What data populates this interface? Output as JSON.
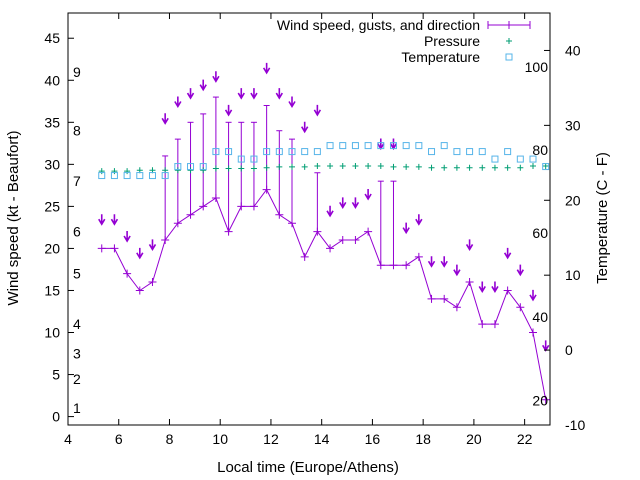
{
  "colors": {
    "wind": "#9400d3",
    "pressure": "#009e73",
    "temperature": "#56b4e9"
  },
  "chart_data": {
    "type": "line",
    "xlabel": "Local time (Europe/Athens)",
    "ylabel": "Wind speed (kt - Beaufort)",
    "y2label": "Temperature (C - F)",
    "xlim": [
      4,
      23
    ],
    "ylim": [
      -1,
      48
    ],
    "y2lim": [
      -10,
      45
    ],
    "xticks": [
      4,
      6,
      8,
      10,
      12,
      14,
      16,
      18,
      20,
      22
    ],
    "yticks": [
      0,
      5,
      10,
      15,
      20,
      25,
      30,
      35,
      40,
      45
    ],
    "y2ticks": [
      -10,
      0,
      10,
      20,
      30,
      40
    ],
    "beaufort_labels": [
      {
        "text": "1",
        "kt": 1
      },
      {
        "text": "2",
        "kt": 4.5
      },
      {
        "text": "3",
        "kt": 7.5
      },
      {
        "text": "4",
        "kt": 11
      },
      {
        "text": "5",
        "kt": 17
      },
      {
        "text": "6",
        "kt": 22
      },
      {
        "text": "7",
        "kt": 28
      },
      {
        "text": "8",
        "kt": 34
      },
      {
        "text": "9",
        "kt": 41
      }
    ],
    "fahrenheit_labels": [
      {
        "text": "20",
        "c": -6.7
      },
      {
        "text": "40",
        "c": 4.4
      },
      {
        "text": "60",
        "c": 15.6
      },
      {
        "text": "80",
        "c": 26.7
      },
      {
        "text": "100",
        "c": 37.8
      }
    ],
    "legend": [
      {
        "label": "Wind speed, gusts, and direction",
        "series": "wind"
      },
      {
        "label": "Pressure",
        "series": "pressure"
      },
      {
        "label": "Temperature",
        "series": "temperature"
      }
    ],
    "wind": {
      "x": [
        5.33,
        5.83,
        6.33,
        6.83,
        7.33,
        7.83,
        8.33,
        8.83,
        9.33,
        9.83,
        10.33,
        10.83,
        11.33,
        11.83,
        12.33,
        12.83,
        13.33,
        13.83,
        14.33,
        14.83,
        15.33,
        15.83,
        16.33,
        16.83,
        17.33,
        17.83,
        18.33,
        18.83,
        19.33,
        19.83,
        20.33,
        20.83,
        21.33,
        21.83,
        22.33,
        22.83
      ],
      "speed": [
        20,
        20,
        17,
        15,
        16,
        21,
        23,
        24,
        25,
        26,
        22,
        25,
        25,
        27,
        24,
        23,
        19,
        22,
        20,
        21,
        21,
        22,
        18,
        18,
        18,
        19,
        14,
        14,
        13,
        16,
        11,
        11,
        15,
        13,
        10,
        2
      ],
      "gust": [
        null,
        null,
        null,
        null,
        null,
        31,
        33,
        35,
        36,
        38,
        35,
        35,
        35,
        37,
        34,
        33,
        null,
        29,
        null,
        null,
        null,
        null,
        28,
        28,
        null,
        null,
        null,
        null,
        null,
        null,
        null,
        null,
        null,
        null,
        null,
        null
      ],
      "arrow_kt": [
        23,
        23,
        21,
        19,
        20,
        35,
        37,
        38,
        39,
        40,
        36,
        38,
        38,
        41,
        38,
        37,
        34,
        36,
        24,
        25,
        25,
        26,
        32,
        32,
        22,
        23,
        18,
        18,
        17,
        20,
        15,
        15,
        19,
        17,
        14,
        8
      ]
    },
    "pressure": {
      "x": [
        5.33,
        5.83,
        6.33,
        6.83,
        7.33,
        7.83,
        8.33,
        8.83,
        9.33,
        9.83,
        10.33,
        10.83,
        11.33,
        11.83,
        12.33,
        12.83,
        13.33,
        13.83,
        14.33,
        14.83,
        15.33,
        15.83,
        16.33,
        16.83,
        17.33,
        17.83,
        18.33,
        18.83,
        19.33,
        19.83,
        20.33,
        20.83,
        21.33,
        21.83,
        22.33,
        22.83
      ],
      "y": [
        29.2,
        29.2,
        29.2,
        29.3,
        29.3,
        29.3,
        29.3,
        29.3,
        29.3,
        29.5,
        29.5,
        29.5,
        29.5,
        29.6,
        29.7,
        29.7,
        29.7,
        29.8,
        29.8,
        29.8,
        29.8,
        29.8,
        29.8,
        29.7,
        29.7,
        29.7,
        29.6,
        29.6,
        29.6,
        29.6,
        29.6,
        29.6,
        29.6,
        29.6,
        29.8,
        29.8
      ]
    },
    "temperature": {
      "x": [
        5.33,
        5.83,
        6.33,
        6.83,
        7.33,
        7.83,
        8.33,
        8.83,
        9.33,
        9.83,
        10.33,
        10.83,
        11.33,
        11.83,
        12.33,
        12.83,
        13.33,
        13.83,
        14.33,
        14.83,
        15.33,
        15.83,
        16.33,
        16.83,
        17.33,
        17.83,
        18.33,
        18.83,
        19.33,
        19.83,
        20.33,
        20.83,
        21.33,
        21.83,
        22.33,
        22.83
      ],
      "y": [
        23.3,
        23.3,
        23.3,
        23.3,
        23.3,
        23.3,
        24.5,
        24.5,
        24.5,
        26.5,
        26.5,
        25.5,
        25.5,
        26.5,
        26.5,
        26.5,
        26.5,
        26.5,
        27.3,
        27.3,
        27.3,
        27.3,
        27.3,
        27.3,
        27.3,
        27.3,
        26.5,
        27.3,
        26.5,
        26.5,
        26.5,
        25.5,
        26.5,
        25.5,
        25.5,
        24.5
      ]
    }
  }
}
